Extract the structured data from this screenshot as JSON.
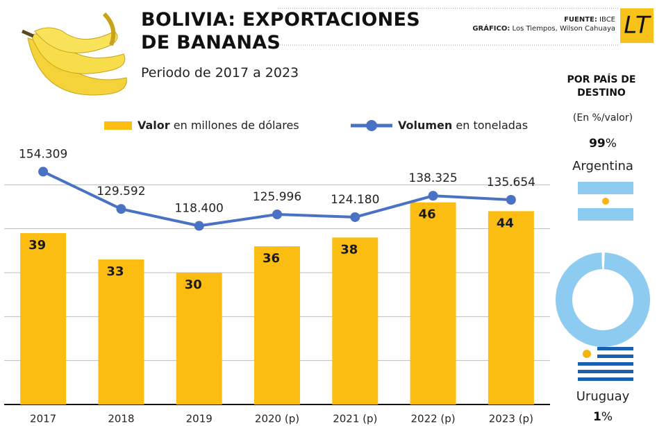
{
  "header": {
    "title": "BOLIVIA: EXPORTACIONES DE BANANAS",
    "subtitle": "Periodo de 2017 a 2023",
    "source": "FUENTE: IBCE",
    "credit": "GRÁFICO: Los Tiempos, Wilson Cahuaya",
    "logo": "LT"
  },
  "chart_data": [
    {
      "type": "bar",
      "categories": [
        "2017",
        "2018",
        "2019",
        "2020 (p)",
        "2021 (p)",
        "2022 (p)",
        "2023 (p)"
      ],
      "series": [
        {
          "name": "Valor en millones de dólares",
          "type": "bar",
          "color": "#fbbd12",
          "values": [
            39,
            33,
            30,
            36,
            38,
            46,
            44
          ]
        },
        {
          "name": "Volumen en toneladas",
          "type": "line",
          "axis": "y2",
          "color": "#4a72c4",
          "values": [
            154309,
            129592,
            118400,
            125996,
            124180,
            138325,
            135654
          ],
          "value_labels": [
            "154.309",
            "129.592",
            "118.400",
            "125.996",
            "124.180",
            "138.325",
            "135.654"
          ]
        }
      ],
      "ylim": [
        0,
        57
      ],
      "yticks": [
        0,
        10,
        20,
        30,
        40,
        50
      ],
      "y2lim": [
        0,
        166000
      ],
      "grid": true,
      "legend": "top"
    },
    {
      "type": "pie",
      "title": "POR PAÍS DE DESTINO",
      "subtitle": "(En %/valor)",
      "categories": [
        "Argentina",
        "Uruguay"
      ],
      "values": [
        99,
        1
      ],
      "value_labels": [
        "99%",
        "1%"
      ],
      "colors": [
        "#8ecbf0",
        "#ffffff"
      ]
    }
  ]
}
